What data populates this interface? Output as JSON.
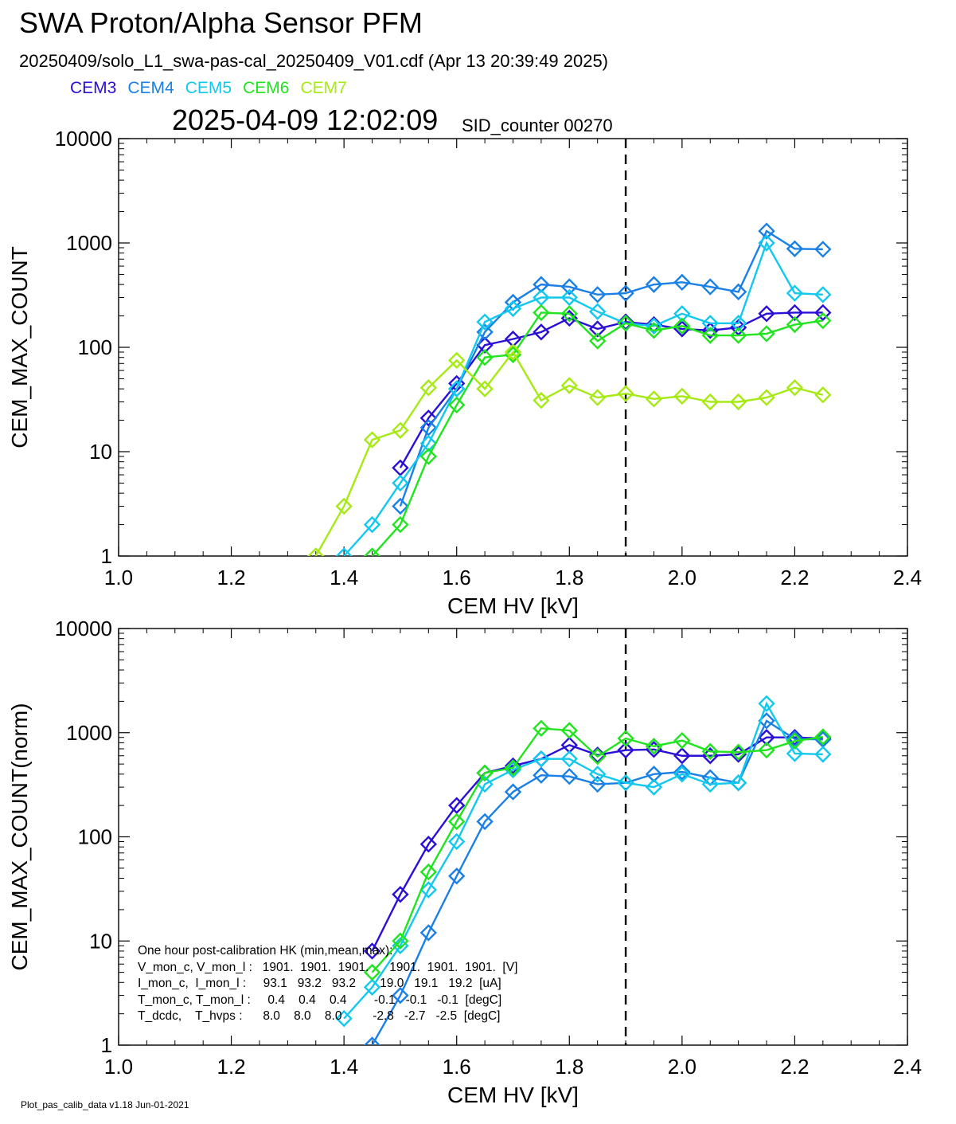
{
  "header": {
    "title": "SWA Proton/Alpha Sensor PFM",
    "file_info": "20250409/solo_L1_swa-pas-cal_20250409_V01.cdf  (Apr 13 20:39:49 2025)",
    "timestamp": "2025-04-09 12:02:09",
    "sid_counter": "SID_counter 00270"
  },
  "legend": [
    {
      "name": "CEM3",
      "color": "#2a0fd6"
    },
    {
      "name": "CEM4",
      "color": "#1a80e6"
    },
    {
      "name": "CEM5",
      "color": "#12c8ee"
    },
    {
      "name": "CEM6",
      "color": "#21e41f"
    },
    {
      "name": "CEM7",
      "color": "#a6ea13"
    }
  ],
  "footer": "Plot_pas_calib_data v1.18 Jun-01-2021",
  "hk_text": {
    "line1": "One hour post-calibration HK (min,mean,max):",
    "line2": "V_mon_c, V_mon_l :   1901.  1901.  1901.      1901.  1901.  1901.  [V]",
    "line3": "I_mon_c,  I_mon_l :     93.1   93.2   93.2       19.0   19.1   19.2  [uA]",
    "line4": "T_mon_c, T_mon_l :     0.4    0.4    0.4        -0.1   -0.1   -0.1  [degC]",
    "line5": "T_dcdc,    T_hvps :      8.0    8.0    8.0         -2.8   -2.7   -2.5  [degC]"
  },
  "chart_data": [
    {
      "type": "line",
      "xlabel": "CEM HV [kV]",
      "ylabel": "CEM_MAX_COUNT",
      "xlim": [
        1.0,
        2.4
      ],
      "ylim": [
        1,
        10000
      ],
      "yscale": "log",
      "x_ticks": [
        "1.0",
        "1.2",
        "1.4",
        "1.6",
        "1.8",
        "2.0",
        "2.2",
        "2.4"
      ],
      "y_ticks": [
        "1",
        "10",
        "100",
        "1000",
        "10000"
      ],
      "vline": 1.9,
      "x": [
        1.35,
        1.4,
        1.45,
        1.5,
        1.55,
        1.6,
        1.65,
        1.7,
        1.75,
        1.8,
        1.85,
        1.9,
        1.95,
        2.0,
        2.05,
        2.1,
        2.15,
        2.2,
        2.25
      ],
      "series": [
        {
          "name": "CEM3",
          "values": [
            null,
            null,
            null,
            7,
            21,
            45,
            105,
            120,
            140,
            190,
            150,
            175,
            165,
            150,
            145,
            155,
            210,
            215,
            215
          ]
        },
        {
          "name": "CEM4",
          "values": [
            null,
            null,
            null,
            3,
            17,
            40,
            140,
            270,
            400,
            380,
            320,
            330,
            400,
            420,
            380,
            340,
            1300,
            880,
            870
          ]
        },
        {
          "name": "CEM5",
          "values": [
            null,
            1,
            2,
            5,
            12,
            40,
            175,
            235,
            300,
            300,
            220,
            170,
            160,
            210,
            170,
            170,
            1000,
            330,
            320
          ]
        },
        {
          "name": "CEM6",
          "values": [
            null,
            null,
            1,
            2,
            9,
            28,
            80,
            85,
            215,
            210,
            115,
            170,
            145,
            160,
            130,
            130,
            135,
            165,
            180
          ]
        },
        {
          "name": "CEM7",
          "values": [
            1,
            3,
            13,
            16,
            41,
            75,
            40,
            90,
            31,
            43,
            33,
            36,
            32,
            34,
            30,
            30,
            33,
            41,
            35
          ]
        }
      ]
    },
    {
      "type": "line",
      "xlabel": "CEM HV [kV]",
      "ylabel": "CEM_MAX_COUNT(norm)",
      "xlim": [
        1.0,
        2.4
      ],
      "ylim": [
        1,
        10000
      ],
      "yscale": "log",
      "x_ticks": [
        "1.0",
        "1.2",
        "1.4",
        "1.6",
        "1.8",
        "2.0",
        "2.2",
        "2.4"
      ],
      "y_ticks": [
        "1",
        "10",
        "100",
        "1000",
        "10000"
      ],
      "vline": 1.9,
      "x": [
        1.35,
        1.4,
        1.45,
        1.5,
        1.55,
        1.6,
        1.65,
        1.7,
        1.75,
        1.8,
        1.85,
        1.9,
        1.95,
        2.0,
        2.05,
        2.1,
        2.15,
        2.2,
        2.25
      ],
      "series": [
        {
          "name": "CEM3",
          "values": [
            null,
            null,
            8,
            28,
            85,
            200,
            410,
            480,
            560,
            760,
            610,
            680,
            690,
            600,
            600,
            620,
            900,
            900,
            880
          ]
        },
        {
          "name": "CEM4",
          "values": [
            null,
            null,
            1,
            3,
            12,
            42,
            140,
            270,
            390,
            380,
            320,
            330,
            400,
            420,
            370,
            330,
            1300,
            870,
            860
          ]
        },
        {
          "name": "CEM5",
          "values": [
            null,
            1.8,
            3.6,
            9,
            31,
            90,
            320,
            440,
            560,
            560,
            400,
            330,
            300,
            400,
            320,
            330,
            1900,
            630,
            620
          ]
        },
        {
          "name": "CEM6",
          "values": [
            null,
            null,
            5,
            10,
            46,
            140,
            410,
            460,
            1100,
            1050,
            590,
            880,
            740,
            840,
            660,
            650,
            680,
            830,
            910
          ]
        }
      ]
    }
  ]
}
